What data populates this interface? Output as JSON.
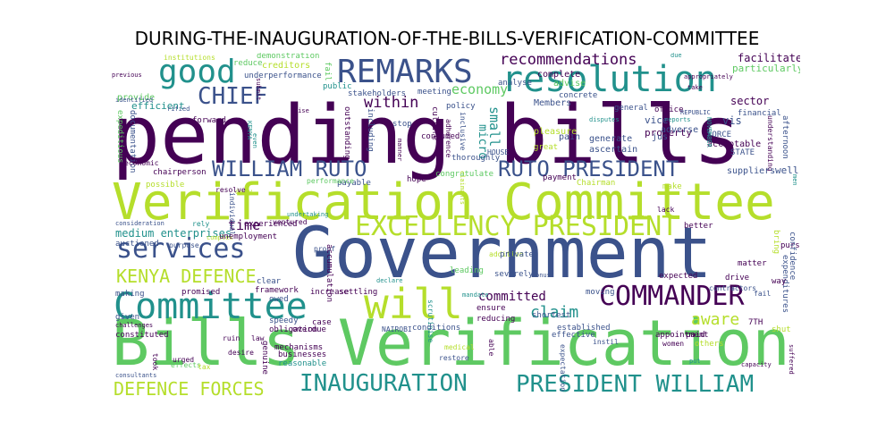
{
  "title": "DURING-THE-INAUGURATION-OF-THE-BILLS-VERIFICATION-COMMITTEE",
  "palette": [
    "#440154",
    "#3b528b",
    "#21918c",
    "#5ec962",
    "#b5de2b"
  ],
  "words": [
    "pending bills",
    "Government",
    "Bills Verification",
    "Verification Committee",
    "Committee",
    "will",
    "resolution",
    "REMARKS",
    "good",
    "EXCELLENCY PRESIDENT",
    "COMMANDER",
    "RUTO PRESIDENT",
    "INAUGURATION",
    "PRESIDENT WILLIAM",
    "WILLIAM RUTO",
    "CHIEF",
    "services",
    "KENYA DEFENCE",
    "DEFENCE FORCES",
    "recommendations",
    "economy",
    "within",
    "micro",
    "small",
    "time",
    "committed",
    "claim",
    "aware",
    "medium enterprises",
    "sector",
    "facilitate",
    "particularly",
    "creditors",
    "demonstration",
    "reduce",
    "institutions",
    "fail",
    "provide",
    "efficient",
    "underperformance",
    "complete",
    "advise",
    "analyse",
    "public",
    "stakeholders",
    "meeting",
    "policy",
    "adherence",
    "inclusive",
    "Members",
    "concrete",
    "office",
    "general",
    "reports",
    "vice",
    "property",
    "pain",
    "generate",
    "ascertain",
    "adverse",
    "jus",
    "vis",
    "FORCE",
    "acceptable",
    "financial",
    "understanding",
    "afternoon",
    "expeditious",
    "documentation",
    "forward",
    "chairperson",
    "economic",
    "possible",
    "duty",
    "individual",
    "outstanding",
    "including",
    "stop",
    "consumed",
    "culture",
    "thoroughly",
    "pleasure",
    "great",
    "HOUSE",
    "payment",
    "Chairman",
    "make",
    "suppliers",
    "well",
    "STATE",
    "hope",
    "congratulate",
    "payable",
    "performance",
    "consideration",
    "rely",
    "auctioned",
    "purpose",
    "complex",
    "unemployment",
    "clear",
    "framework",
    "owed",
    "experienced",
    "ventured",
    "proof",
    "accumulation",
    "addition",
    "private",
    "leading",
    "severely",
    "better",
    "bring",
    "pursued",
    "confidence",
    "expenditures",
    "matter",
    "drive",
    "way",
    "fail",
    "contractors",
    "expected",
    "making",
    "promised",
    "increase",
    "settling",
    "scrutinise",
    "ensure",
    "reducing",
    "shortest",
    "moving",
    "established",
    "effective",
    "appointment",
    "others",
    "7TH",
    "shut",
    "given",
    "challenges",
    "constituted",
    "obligation",
    "case",
    "speedy",
    "overdue",
    "law",
    "ruin",
    "desire",
    "genuine",
    "mechanisms",
    "conditions",
    "NAIROBI",
    "expectation",
    "instil",
    "paid",
    "women",
    "restore",
    "medical",
    "able",
    "reasonable",
    "businesses",
    "took",
    "effects",
    "urged",
    "consultants",
    "capacity",
    "suffered",
    "previous",
    "identified",
    "rified",
    "REPUBLIC",
    "NOVEMBER",
    "KENYA",
    "even",
    "due",
    "appropriately",
    "take",
    "rise",
    "submit",
    "manner",
    "disputes",
    "mandate",
    "onus",
    "claimants",
    "resolve",
    "lack",
    "men",
    "undertaking",
    "declare",
    "put",
    "tax",
    "officially"
  ],
  "stopword_note": ""
}
